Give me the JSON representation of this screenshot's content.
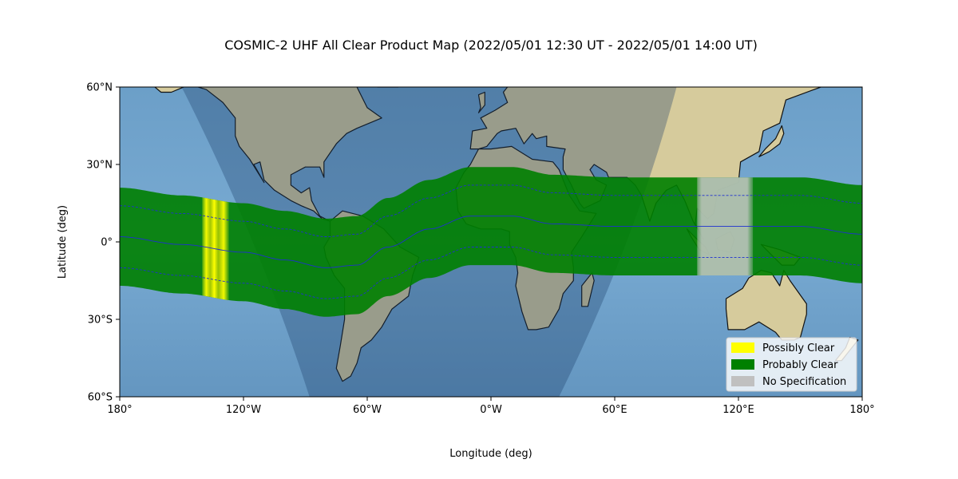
{
  "chart_data": {
    "type": "map",
    "title": "COSMIC-2 UHF All Clear Product Map (2022/05/01 12:30 UT - 2022/05/01 14:00 UT)",
    "xlabel": "Longitude (deg)",
    "ylabel": "Latitude (deg)",
    "xlim": [
      -180,
      180
    ],
    "ylim": [
      -60,
      60
    ],
    "x_ticks": [
      {
        "value": -180,
        "label": "180°"
      },
      {
        "value": -120,
        "label": "120°W"
      },
      {
        "value": -60,
        "label": "60°W"
      },
      {
        "value": 0,
        "label": "0°W"
      },
      {
        "value": 60,
        "label": "60°E"
      },
      {
        "value": 120,
        "label": "120°E"
      },
      {
        "value": 180,
        "label": "180°"
      }
    ],
    "y_ticks": [
      {
        "value": 60,
        "label": "60°N"
      },
      {
        "value": 30,
        "label": "30°N"
      },
      {
        "value": 0,
        "label": "0°"
      },
      {
        "value": -30,
        "label": "30°S"
      },
      {
        "value": -60,
        "label": "60°S"
      }
    ],
    "band_centerline": {
      "lon": [
        -180,
        -150,
        -120,
        -100,
        -80,
        -65,
        -50,
        -30,
        -10,
        10,
        30,
        60,
        90,
        120,
        150,
        180
      ],
      "lat": [
        2,
        -1,
        -4,
        -7,
        -10,
        -9,
        -2,
        5,
        10,
        10,
        7,
        6,
        6,
        6,
        6,
        3
      ]
    },
    "band_halfwidth_deg": 19,
    "dip_equator_offset_deg": 12,
    "night_region": {
      "west_edge_lon": [
        -150,
        -88
      ],
      "east_edge_lon": [
        90,
        33
      ]
    },
    "segments": [
      {
        "category": "Possibly Clear",
        "lon_start": -140,
        "lon_end": -127
      },
      {
        "category": "No Specification",
        "lon_start": 100,
        "lon_end": 127
      }
    ],
    "legend": {
      "position": "lower right",
      "entries": [
        {
          "label": "Possibly Clear",
          "color": "#ffff00"
        },
        {
          "label": "Probably Clear",
          "color": "#008000"
        },
        {
          "label": "No Specification",
          "color": "#c0c0c0"
        }
      ]
    },
    "colors": {
      "ocean": "#6fa3cc",
      "land": "#d8cc9e",
      "probably_clear": "#008000",
      "possibly_clear": "#ffff00",
      "no_spec": "#c0c0c0",
      "dip_line": "#1f2fd0"
    }
  }
}
